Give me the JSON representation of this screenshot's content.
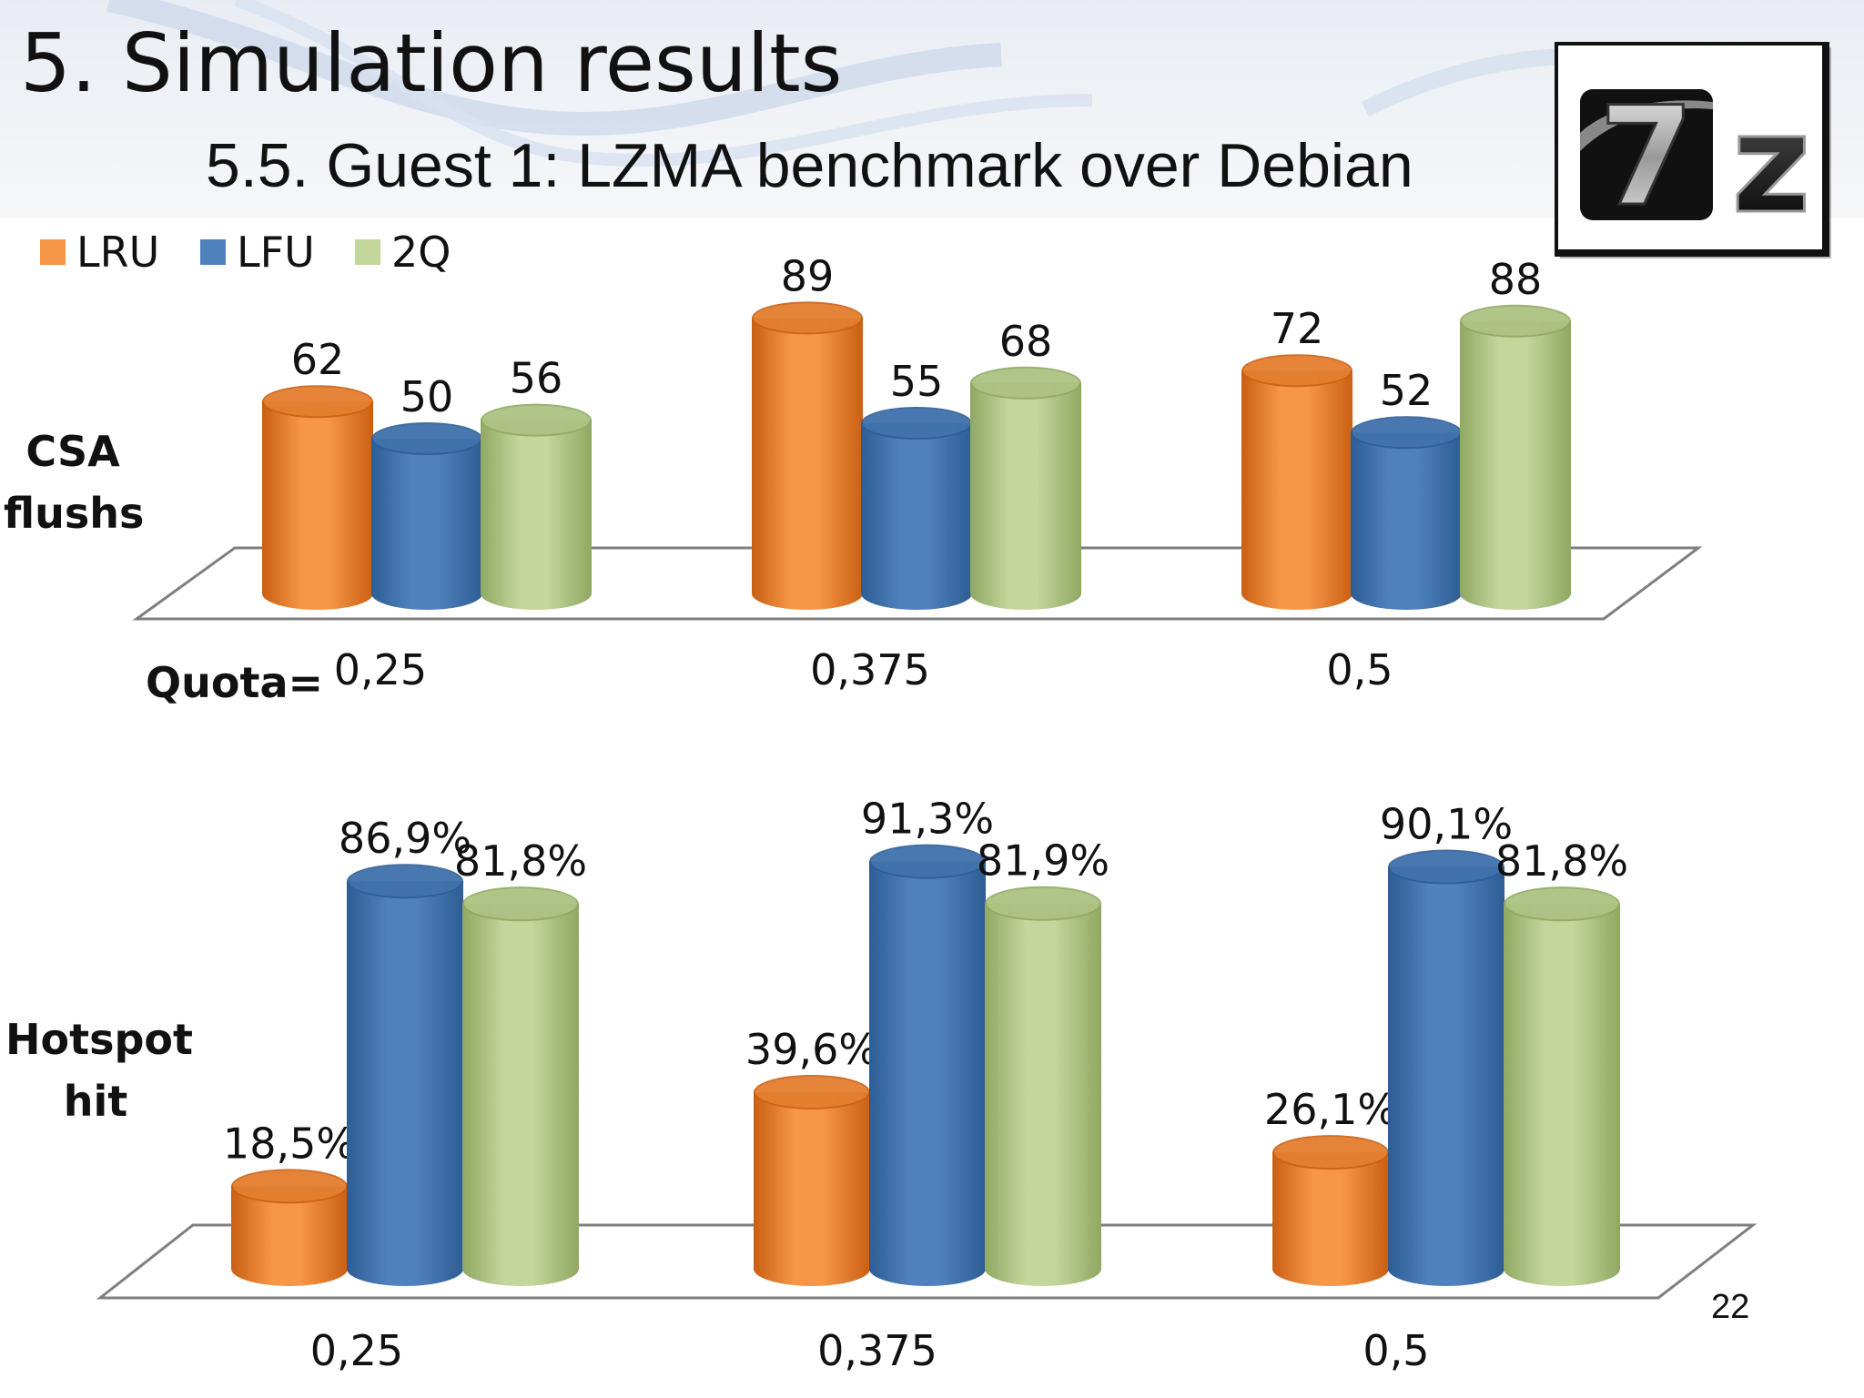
{
  "slide": {
    "title": "5. Simulation results",
    "subtitle": "5.5. Guest 1: LZMA benchmark over Debian",
    "page_number": "22",
    "logo_text": "7z"
  },
  "legend": [
    {
      "name": "LRU",
      "color": "#F79646"
    },
    {
      "name": "LFU",
      "color": "#4F81BD"
    },
    {
      "name": "2Q",
      "color": "#C3D69B"
    }
  ],
  "row_labels": {
    "top_line1": "CSA",
    "top_line2": "flushs",
    "bottom_line1": "Hotspot",
    "bottom_line2": "hit",
    "quota_prefix": "Quota="
  },
  "chart_data": [
    {
      "type": "bar",
      "categories": [
        "0,25",
        "0,375",
        "0,5"
      ],
      "series": [
        {
          "name": "LRU",
          "values": [
            62,
            89,
            72
          ],
          "labels": [
            "62",
            "89",
            "72"
          ]
        },
        {
          "name": "LFU",
          "values": [
            50,
            55,
            52
          ],
          "labels": [
            "50",
            "55",
            "52"
          ]
        },
        {
          "name": "2Q",
          "values": [
            56,
            68,
            88
          ],
          "labels": [
            "56",
            "68",
            "88"
          ]
        }
      ]
    },
    {
      "type": "bar",
      "categories": [
        "0,25",
        "0,375",
        "0,5"
      ],
      "series": [
        {
          "name": "LRU",
          "values": [
            18.5,
            39.6,
            26.1
          ],
          "labels": [
            "18,5%",
            "39,6%",
            "26,1%"
          ]
        },
        {
          "name": "LFU",
          "values": [
            86.9,
            91.3,
            90.1
          ],
          "labels": [
            "86,9%",
            "91,3%",
            "90,1%"
          ]
        },
        {
          "name": "2Q",
          "values": [
            81.8,
            81.9,
            81.8
          ],
          "labels": [
            "81,8%",
            "81,9%",
            "81,8%"
          ]
        }
      ]
    }
  ],
  "colors": {
    "LRU_dark": "#C95F13",
    "LFU_dark": "#2E5D94",
    "2Q_dark": "#8FA862",
    "floor_line": "#7f7f7f"
  }
}
